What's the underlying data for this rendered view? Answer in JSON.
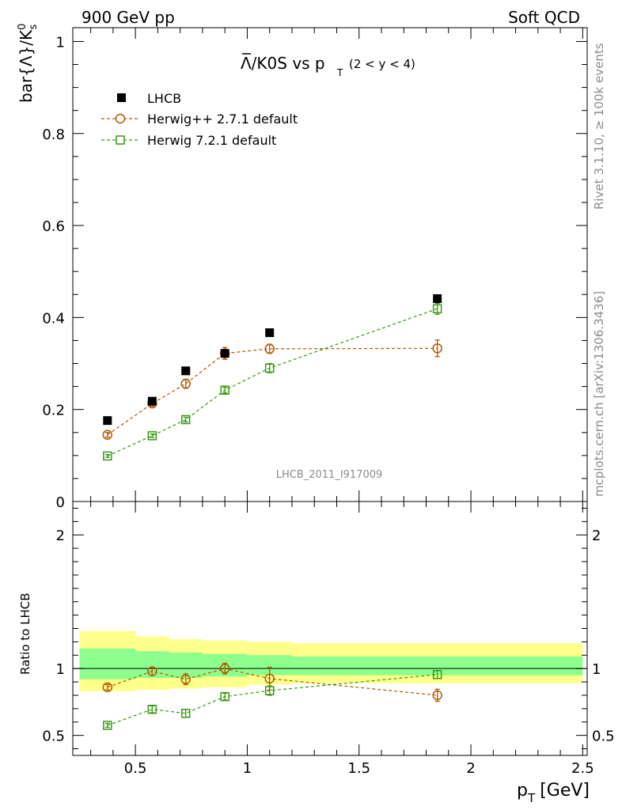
{
  "header": {
    "left": "900 GeV pp",
    "right": "Soft QCD"
  },
  "plot_title": {
    "main": "Λ/K0S vs p",
    "sub": "T",
    "range": "(2 < y < 4)"
  },
  "side_text": {
    "top": "Rivet 3.1.10, ≥ 100k events",
    "bottom": "mcplots.cern.ch [arXiv:1306.3436]"
  },
  "watermark": "LHCB_2011_I917009",
  "main_ylabel": {
    "text": "bar{Λ}/K",
    "sup": "0",
    "sub": "s"
  },
  "ratio_ylabel": "Ratio to LHCB",
  "xlabel": {
    "base": "p",
    "sub": "T",
    "rest": "[GeV]"
  },
  "legend": [
    {
      "label": "LHCB"
    },
    {
      "label": "Herwig++ 2.7.1 default"
    },
    {
      "label": "Herwig 7.2.1 default"
    }
  ],
  "colors": {
    "data": "#000000",
    "herwigpp": "#b35900",
    "herwig7": "#3a9a12",
    "band_outer": "#ffff8c",
    "band_inner": "#8cff8c",
    "side_text": "#8c8c8c",
    "watermark": "#8c8c8c"
  },
  "chart_data": [
    {
      "type": "scatter",
      "panel": "main",
      "xlim": [
        0.22,
        2.52
      ],
      "ylim": [
        0,
        1.03
      ],
      "yticks": [
        "0",
        "0.2",
        "0.4",
        "0.6",
        "0.8",
        "1"
      ],
      "yticks_values": [
        0,
        0.2,
        0.4,
        0.6,
        0.8,
        1.0
      ],
      "series": [
        {
          "name": "LHCB",
          "x": [
            0.375,
            0.575,
            0.725,
            0.9,
            1.1,
            1.85
          ],
          "y": [
            0.176,
            0.218,
            0.284,
            0.322,
            0.367,
            0.441
          ],
          "yerr": [
            0.004,
            0.004,
            0.005,
            0.006,
            0.007,
            0.008
          ]
        },
        {
          "name": "Herwig++ 2.7.1 default",
          "x": [
            0.375,
            0.575,
            0.725,
            0.9,
            1.1,
            1.85
          ],
          "y": [
            0.145,
            0.213,
            0.256,
            0.322,
            0.332,
            0.333
          ],
          "yerr": [
            0.005,
            0.006,
            0.01,
            0.013,
            0.01,
            0.018
          ]
        },
        {
          "name": "Herwig 7.2.1 default",
          "x": [
            0.375,
            0.575,
            0.725,
            0.9,
            1.1,
            1.85
          ],
          "y": [
            0.099,
            0.143,
            0.178,
            0.242,
            0.29,
            0.419
          ],
          "yerr": [
            0.003,
            0.004,
            0.005,
            0.006,
            0.01,
            0.012
          ]
        }
      ]
    },
    {
      "type": "scatter",
      "panel": "ratio",
      "xlim": [
        0.22,
        2.52
      ],
      "ylim": [
        0.35,
        2.25
      ],
      "yticks": [
        "0.5",
        "1",
        "2"
      ],
      "yticks_values": [
        0.5,
        1.0,
        2.0
      ],
      "xticks": [
        "0.5",
        "1",
        "1.5",
        "2",
        "2.5"
      ],
      "xticks_values": [
        0.5,
        1.0,
        1.5,
        2.0,
        2.5
      ],
      "reference_line": 1.0,
      "bands": {
        "x_edges": [
          0.25,
          0.5,
          0.65,
          0.8,
          1.0,
          1.2,
          2.5
        ],
        "outer": [
          [
            0.83,
            1.28
          ],
          [
            0.84,
            1.24
          ],
          [
            0.85,
            1.22
          ],
          [
            0.86,
            1.21
          ],
          [
            0.88,
            1.2
          ],
          [
            0.89,
            1.19
          ]
        ],
        "inner": [
          [
            0.92,
            1.15
          ],
          [
            0.93,
            1.13
          ],
          [
            0.93,
            1.12
          ],
          [
            0.94,
            1.11
          ],
          [
            0.95,
            1.1
          ],
          [
            0.95,
            1.09
          ]
        ]
      },
      "series": [
        {
          "name": "Herwig++ 2.7.1 default",
          "x": [
            0.375,
            0.575,
            0.725,
            0.9,
            1.1,
            1.85
          ],
          "y": [
            0.86,
            0.98,
            0.92,
            1.0,
            0.925,
            0.8
          ],
          "yerr": [
            0.02,
            0.03,
            0.04,
            0.04,
            0.085,
            0.045
          ]
        },
        {
          "name": "Herwig 7.2.1 default",
          "x": [
            0.375,
            0.575,
            0.725,
            0.9,
            1.1,
            1.85
          ],
          "y": [
            0.575,
            0.695,
            0.665,
            0.79,
            0.835,
            0.955
          ],
          "yerr": [
            0.015,
            0.025,
            0.03,
            0.025,
            0.035,
            0.03
          ]
        }
      ]
    }
  ]
}
